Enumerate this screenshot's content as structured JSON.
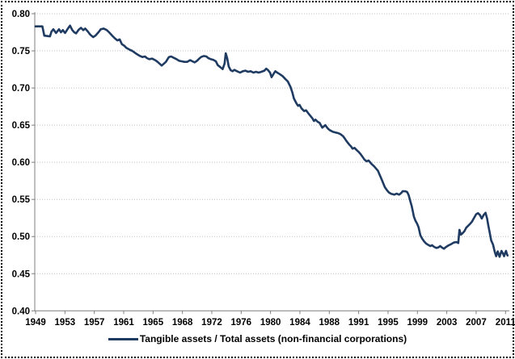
{
  "legend": {
    "label": "Tangible assets / Total assets (non-financial corporations)"
  },
  "colors": {
    "line": "#1F3B62",
    "grid": "#BFBFBF",
    "axis": "#7F7F7F",
    "tick": "#7F7F7F",
    "label": "#000000",
    "background": "#FFFFFF",
    "border": "#000000"
  },
  "chart_data": {
    "type": "line",
    "title": "",
    "xlabel": "",
    "ylabel": "",
    "legend_position": "bottom-center",
    "grid": "horizontal dotted",
    "ylim": [
      0.4,
      0.8
    ],
    "y_tick_step": 0.05,
    "y_tick_labels": [
      "0.40",
      "0.45",
      "0.50",
      "0.55",
      "0.60",
      "0.65",
      "0.70",
      "0.75",
      "0.80"
    ],
    "x_tick_labels": [
      "1949",
      "1953",
      "1957",
      "1961",
      "1965",
      "1968",
      "1972",
      "1976",
      "1980",
      "1984",
      "1988",
      "1991",
      "1995",
      "1999",
      "2003",
      "2007",
      "2011"
    ],
    "x_year_range": [
      1949,
      2011.3
    ],
    "series": [
      {
        "name": "Tangible assets / Total assets (non-financial corporations)",
        "color": "#1F3B62",
        "points": [
          [
            1949.0,
            0.783
          ],
          [
            1949.9,
            0.783
          ],
          [
            1950.15,
            0.7705
          ],
          [
            1950.9,
            0.7695
          ],
          [
            1951.1,
            0.776
          ],
          [
            1951.35,
            0.779
          ],
          [
            1951.7,
            0.774
          ],
          [
            1952.1,
            0.779
          ],
          [
            1952.35,
            0.775
          ],
          [
            1952.6,
            0.778
          ],
          [
            1952.9,
            0.774
          ],
          [
            1953.2,
            0.779
          ],
          [
            1953.55,
            0.784
          ],
          [
            1953.85,
            0.778
          ],
          [
            1954.1,
            0.775
          ],
          [
            1954.35,
            0.7735
          ],
          [
            1954.7,
            0.7785
          ],
          [
            1955.0,
            0.781
          ],
          [
            1955.3,
            0.778
          ],
          [
            1955.55,
            0.78
          ],
          [
            1955.9,
            0.776
          ],
          [
            1956.2,
            0.772
          ],
          [
            1956.6,
            0.7685
          ],
          [
            1956.9,
            0.7705
          ],
          [
            1957.3,
            0.775
          ],
          [
            1957.6,
            0.779
          ],
          [
            1958.0,
            0.78
          ],
          [
            1958.4,
            0.778
          ],
          [
            1958.7,
            0.775
          ],
          [
            1959.1,
            0.7707
          ],
          [
            1959.45,
            0.767
          ],
          [
            1959.8,
            0.764
          ],
          [
            1960.1,
            0.7655
          ],
          [
            1960.4,
            0.759
          ],
          [
            1960.7,
            0.757
          ],
          [
            1961.0,
            0.754
          ],
          [
            1961.5,
            0.7511
          ],
          [
            1961.75,
            0.75
          ],
          [
            1962.1,
            0.7475
          ],
          [
            1962.4,
            0.7454
          ],
          [
            1962.75,
            0.7433
          ],
          [
            1963.1,
            0.7417
          ],
          [
            1963.45,
            0.7424
          ],
          [
            1963.7,
            0.7403
          ],
          [
            1964.0,
            0.7388
          ],
          [
            1964.4,
            0.7395
          ],
          [
            1964.8,
            0.7374
          ],
          [
            1965.1,
            0.7352
          ],
          [
            1965.4,
            0.7324
          ],
          [
            1965.65,
            0.7302
          ],
          [
            1966.2,
            0.7352
          ],
          [
            1966.6,
            0.7417
          ],
          [
            1966.9,
            0.7424
          ],
          [
            1967.25,
            0.7406
          ],
          [
            1967.6,
            0.7388
          ],
          [
            1967.95,
            0.7366
          ],
          [
            1968.3,
            0.7359
          ],
          [
            1968.65,
            0.7352
          ],
          [
            1969.0,
            0.7352
          ],
          [
            1969.4,
            0.7374
          ],
          [
            1969.7,
            0.7359
          ],
          [
            1970.0,
            0.7345
          ],
          [
            1970.3,
            0.7366
          ],
          [
            1970.6,
            0.7395
          ],
          [
            1970.85,
            0.7417
          ],
          [
            1971.2,
            0.7431
          ],
          [
            1971.55,
            0.7424
          ],
          [
            1971.8,
            0.7403
          ],
          [
            1972.1,
            0.739
          ],
          [
            1972.45,
            0.738
          ],
          [
            1972.8,
            0.7359
          ],
          [
            1973.05,
            0.7308
          ],
          [
            1973.4,
            0.728
          ],
          [
            1973.7,
            0.7254
          ],
          [
            1973.95,
            0.733
          ],
          [
            1974.1,
            0.7468
          ],
          [
            1974.3,
            0.7397
          ],
          [
            1974.5,
            0.729
          ],
          [
            1974.75,
            0.724
          ],
          [
            1975.0,
            0.7226
          ],
          [
            1975.25,
            0.7244
          ],
          [
            1975.6,
            0.7226
          ],
          [
            1976.0,
            0.7207
          ],
          [
            1976.35,
            0.7226
          ],
          [
            1976.7,
            0.7233
          ],
          [
            1977.05,
            0.7218
          ],
          [
            1977.4,
            0.7226
          ],
          [
            1977.75,
            0.7207
          ],
          [
            1978.1,
            0.7218
          ],
          [
            1978.45,
            0.7207
          ],
          [
            1978.8,
            0.7218
          ],
          [
            1979.2,
            0.7233
          ],
          [
            1979.45,
            0.726
          ],
          [
            1979.65,
            0.7244
          ],
          [
            1979.95,
            0.7207
          ],
          [
            1980.15,
            0.7145
          ],
          [
            1980.45,
            0.7196
          ],
          [
            1980.65,
            0.7226
          ],
          [
            1980.9,
            0.7207
          ],
          [
            1981.2,
            0.7189
          ],
          [
            1981.6,
            0.716
          ],
          [
            1981.95,
            0.7124
          ],
          [
            1982.3,
            0.7088
          ],
          [
            1982.65,
            0.7015
          ],
          [
            1982.9,
            0.694
          ],
          [
            1983.1,
            0.686
          ],
          [
            1983.45,
            0.679
          ],
          [
            1983.65,
            0.676
          ],
          [
            1983.85,
            0.6773
          ],
          [
            1984.1,
            0.6726
          ],
          [
            1984.45,
            0.6689
          ],
          [
            1984.7,
            0.67
          ],
          [
            1985.0,
            0.666
          ],
          [
            1985.25,
            0.6628
          ],
          [
            1985.55,
            0.659
          ],
          [
            1985.75,
            0.6556
          ],
          [
            1985.95,
            0.6574
          ],
          [
            1986.25,
            0.6545
          ],
          [
            1986.5,
            0.653
          ],
          [
            1986.7,
            0.6494
          ],
          [
            1986.85,
            0.6465
          ],
          [
            1987.05,
            0.6483
          ],
          [
            1987.25,
            0.65
          ],
          [
            1987.45,
            0.6471
          ],
          [
            1987.65,
            0.6447
          ],
          [
            1987.9,
            0.6428
          ],
          [
            1988.25,
            0.641
          ],
          [
            1988.6,
            0.64
          ],
          [
            1988.95,
            0.6393
          ],
          [
            1989.3,
            0.6375
          ],
          [
            1989.6,
            0.635
          ],
          [
            1989.85,
            0.6314
          ],
          [
            1990.1,
            0.6277
          ],
          [
            1990.4,
            0.624
          ],
          [
            1990.65,
            0.6212
          ],
          [
            1990.85,
            0.6183
          ],
          [
            1991.1,
            0.6194
          ],
          [
            1991.35,
            0.6168
          ],
          [
            1991.65,
            0.614
          ],
          [
            1991.9,
            0.611
          ],
          [
            1992.15,
            0.6075
          ],
          [
            1992.4,
            0.6038
          ],
          [
            1992.7,
            0.6013
          ],
          [
            1992.95,
            0.6024
          ],
          [
            1993.15,
            0.6002
          ],
          [
            1993.35,
            0.5977
          ],
          [
            1993.7,
            0.5945
          ],
          [
            1994.2,
            0.5885
          ],
          [
            1994.7,
            0.5765
          ],
          [
            1995.1,
            0.5665
          ],
          [
            1995.4,
            0.5622
          ],
          [
            1995.65,
            0.5593
          ],
          [
            1995.95,
            0.5575
          ],
          [
            1996.35,
            0.5564
          ],
          [
            1996.65,
            0.5578
          ],
          [
            1997.0,
            0.5564
          ],
          [
            1997.3,
            0.559
          ],
          [
            1997.45,
            0.561
          ],
          [
            1997.8,
            0.561
          ],
          [
            1998.05,
            0.56
          ],
          [
            1998.25,
            0.5557
          ],
          [
            1998.45,
            0.5484
          ],
          [
            1998.65,
            0.5412
          ],
          [
            1998.8,
            0.534
          ],
          [
            1998.95,
            0.5266
          ],
          [
            1999.15,
            0.5212
          ],
          [
            1999.35,
            0.5176
          ],
          [
            1999.55,
            0.5126
          ],
          [
            1999.8,
            0.5016
          ],
          [
            2000.05,
            0.497
          ],
          [
            2000.3,
            0.4933
          ],
          [
            2000.55,
            0.4907
          ],
          [
            2000.8,
            0.489
          ],
          [
            2001.1,
            0.4872
          ],
          [
            2001.35,
            0.4883
          ],
          [
            2001.6,
            0.4861
          ],
          [
            2001.9,
            0.4847
          ],
          [
            2002.15,
            0.4853
          ],
          [
            2002.4,
            0.4872
          ],
          [
            2002.65,
            0.4853
          ],
          [
            2002.9,
            0.4836
          ],
          [
            2003.2,
            0.4861
          ],
          [
            2003.55,
            0.4883
          ],
          [
            2003.85,
            0.4897
          ],
          [
            2004.2,
            0.4919
          ],
          [
            2004.55,
            0.4926
          ],
          [
            2004.8,
            0.4912
          ],
          [
            2004.95,
            0.509
          ],
          [
            2005.15,
            0.5025
          ],
          [
            2005.35,
            0.5043
          ],
          [
            2005.6,
            0.507
          ],
          [
            2005.85,
            0.512
          ],
          [
            2006.1,
            0.5145
          ],
          [
            2006.35,
            0.517
          ],
          [
            2006.6,
            0.52
          ],
          [
            2006.9,
            0.5253
          ],
          [
            2007.15,
            0.53
          ],
          [
            2007.4,
            0.5315
          ],
          [
            2007.65,
            0.529
          ],
          [
            2007.9,
            0.5243
          ],
          [
            2008.15,
            0.529
          ],
          [
            2008.4,
            0.532
          ],
          [
            2008.6,
            0.5243
          ],
          [
            2008.75,
            0.5155
          ],
          [
            2008.95,
            0.5054
          ],
          [
            2009.15,
            0.4946
          ],
          [
            2009.4,
            0.489
          ],
          [
            2009.6,
            0.48
          ],
          [
            2009.8,
            0.4735
          ],
          [
            2010.0,
            0.48
          ],
          [
            2010.25,
            0.4728
          ],
          [
            2010.5,
            0.4807
          ],
          [
            2010.7,
            0.4771
          ],
          [
            2010.85,
            0.4735
          ],
          [
            2011.0,
            0.4782
          ],
          [
            2011.1,
            0.4807
          ],
          [
            2011.2,
            0.4771
          ],
          [
            2011.3,
            0.4745
          ]
        ]
      }
    ]
  }
}
